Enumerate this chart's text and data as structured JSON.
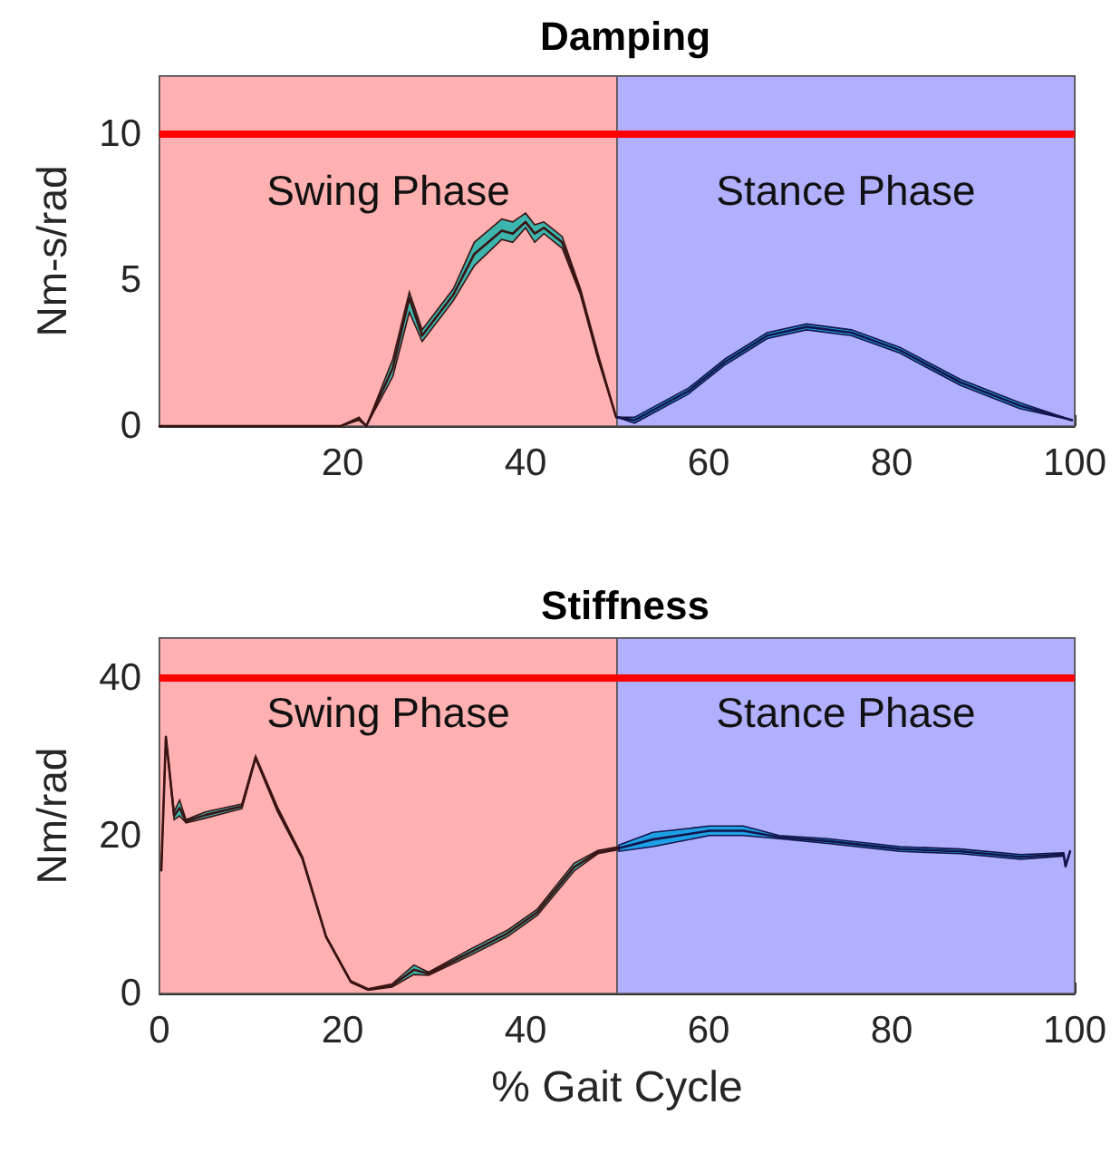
{
  "chart_data": [
    {
      "type": "line",
      "title": "Damping",
      "ylabel": "Nm-s/rad",
      "xlim": [
        0,
        100
      ],
      "xticks": [
        20,
        40,
        60,
        80,
        100
      ],
      "ylim": [
        0,
        12
      ],
      "yticks": [
        0,
        5,
        10
      ],
      "grid": false,
      "marker": "none",
      "line_style": "solid",
      "bands": [
        {
          "axis": "x",
          "from": 0,
          "to": 50,
          "label": "Swing Phase",
          "color": "#ffb0b0"
        },
        {
          "axis": "x",
          "from": 50,
          "to": 100,
          "label": "Stance Phase",
          "color": "#b0b0ff"
        }
      ],
      "ref_lines": [
        {
          "axis": "y",
          "value": 10,
          "label": null,
          "color": "#ff0000"
        }
      ],
      "series": [
        {
          "color": "#3a1414",
          "x": [
            0,
            10,
            19.8,
            21.8,
            22.6,
            25.5,
            27.3,
            28.7,
            32.1,
            34.4,
            37.4,
            38.6,
            40,
            41,
            42,
            44,
            46,
            47.9,
            49.9
          ],
          "values": [
            0,
            0,
            0,
            0.25,
            0,
            2,
            4.4,
            3.1,
            4.5,
            5.9,
            6.7,
            6.6,
            7,
            6.6,
            6.8,
            6.3,
            4.6,
            2.4,
            0.3
          ],
          "lower": [
            0,
            0,
            0,
            0.2,
            0,
            1.7,
            3.9,
            2.9,
            4.3,
            5.5,
            6.4,
            6.3,
            6.8,
            6.3,
            6.6,
            6.1,
            4.5,
            2.3,
            0.3
          ],
          "upper": [
            0,
            0,
            0,
            0.3,
            0,
            2.3,
            4.6,
            3.3,
            4.7,
            6.3,
            7.1,
            7,
            7.3,
            6.9,
            7,
            6.5,
            4.7,
            2.5,
            0.3
          ]
        },
        {
          "color": "#14144a",
          "x": [
            50,
            51.9,
            57.8,
            61.8,
            66.4,
            70.7,
            75.6,
            80.9,
            87.5,
            94,
            99.7
          ],
          "values": [
            0.3,
            0.2,
            1.2,
            2.2,
            3.1,
            3.4,
            3.2,
            2.6,
            1.5,
            0.7,
            0.2
          ],
          "lower": [
            0.3,
            0.1,
            1.1,
            2.1,
            3,
            3.3,
            3.1,
            2.5,
            1.4,
            0.6,
            0.2
          ],
          "upper": [
            0.3,
            0.3,
            1.3,
            2.3,
            3.2,
            3.5,
            3.3,
            2.7,
            1.6,
            0.8,
            0.2
          ]
        }
      ]
    },
    {
      "type": "line",
      "title": "Stiffness",
      "xlabel": "% Gait Cycle",
      "ylabel": "Nm/rad",
      "xlim": [
        0,
        100
      ],
      "xticks": [
        0,
        20,
        40,
        60,
        80,
        100
      ],
      "ylim": [
        0,
        45
      ],
      "yticks": [
        0,
        20,
        40
      ],
      "grid": false,
      "marker": "none",
      "line_style": "solid",
      "bands": [
        {
          "axis": "x",
          "from": 0,
          "to": 50,
          "label": "Swing Phase",
          "color": "#ffb0b0"
        },
        {
          "axis": "x",
          "from": 50,
          "to": 100,
          "label": "Stance Phase",
          "color": "#b0b0ff"
        }
      ],
      "ref_lines": [
        {
          "axis": "y",
          "value": 40,
          "label": null,
          "color": "#ff0000"
        }
      ],
      "series": [
        {
          "color": "#3a1414",
          "x": [
            0.2,
            0.7,
            1.6,
            2.2,
            2.9,
            5,
            9,
            10.5,
            12.9,
            15.6,
            18.2,
            20.9,
            22.8,
            25.4,
            27.8,
            29.4,
            34.1,
            38,
            41.3,
            45.3,
            47.9,
            50.2
          ],
          "values": [
            15.6,
            32.5,
            22.5,
            23.5,
            21.8,
            22.6,
            23.7,
            29.9,
            23.3,
            17.2,
            7.2,
            1.5,
            0.5,
            1,
            3,
            2.5,
            5.3,
            7.6,
            10.3,
            16,
            17.9,
            18.4
          ],
          "lower": [
            15.6,
            32.5,
            22,
            22.5,
            21.6,
            22.2,
            23.4,
            29.7,
            23,
            17,
            7.1,
            1.4,
            0.4,
            0.8,
            2.4,
            2.3,
            4.9,
            7.2,
            9.9,
            15.5,
            17.7,
            18.2
          ],
          "upper": [
            15.6,
            32.5,
            23,
            24.5,
            22,
            23,
            24,
            30.1,
            23.6,
            17.4,
            7.3,
            1.6,
            0.6,
            1.2,
            3.6,
            2.7,
            5.7,
            8,
            10.7,
            16.5,
            18.1,
            18.6
          ]
        },
        {
          "color": "#14144a",
          "x": [
            50.2,
            53.9,
            60.1,
            63.8,
            67.7,
            73,
            80.9,
            87.5,
            94.1,
            98.8,
            99,
            99.5
          ],
          "values": [
            18.4,
            19.5,
            20.6,
            20.6,
            19.8,
            19.3,
            18.3,
            18,
            17.3,
            17.6,
            16.1,
            18
          ],
          "lower": [
            18,
            18.6,
            20,
            20,
            19.6,
            19,
            18,
            17.7,
            17,
            17.4,
            16.1,
            18
          ],
          "upper": [
            18.8,
            20.4,
            21.2,
            21.2,
            20,
            19.6,
            18.6,
            18.3,
            17.6,
            17.8,
            16.1,
            18
          ]
        }
      ]
    }
  ]
}
